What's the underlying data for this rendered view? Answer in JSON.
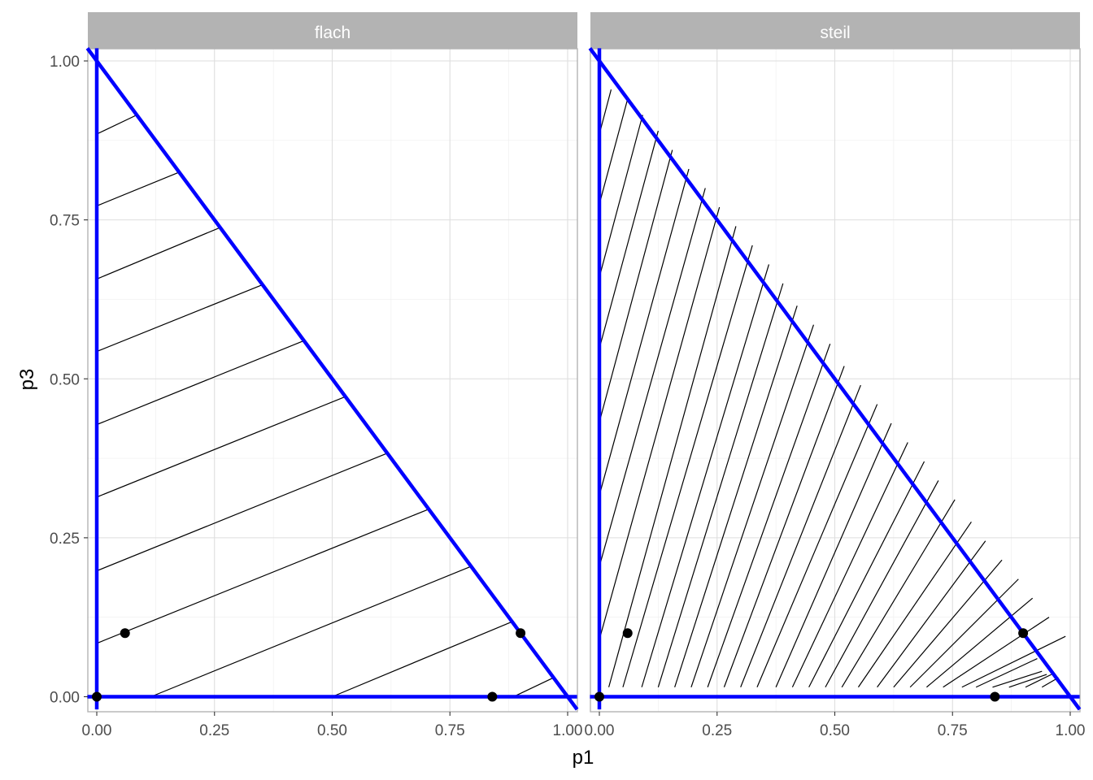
{
  "chart_data": {
    "type": "line",
    "xlabel": "p1",
    "ylabel": "p3",
    "xlim": [
      0,
      1
    ],
    "ylim": [
      0,
      1
    ],
    "x_ticks": [
      "0.00",
      "0.25",
      "0.50",
      "0.75",
      "1.00"
    ],
    "y_ticks": [
      "0.00",
      "0.25",
      "0.50",
      "0.75",
      "1.00"
    ],
    "grid": true,
    "boundary_color": "#0000ff",
    "indifference_color": "#000000",
    "point_color": "#000000",
    "panels": [
      {
        "strip_label": "flach",
        "points": [
          [
            0.0,
            0.0
          ],
          [
            0.06,
            0.1
          ],
          [
            0.84,
            0.0
          ],
          [
            0.9,
            0.1
          ]
        ],
        "boundary": [
          [
            0.0,
            0.0
          ],
          [
            1.0,
            0.0
          ],
          [
            0.0,
            1.0
          ]
        ],
        "indifference_lines": [
          [
            [
              0.0,
              0.885
            ],
            [
              0.085,
              0.915
            ]
          ],
          [
            [
              0.0,
              0.772
            ],
            [
              0.175,
              0.825
            ]
          ],
          [
            [
              0.0,
              0.657
            ],
            [
              0.262,
              0.738
            ]
          ],
          [
            [
              0.0,
              0.543
            ],
            [
              0.352,
              0.648
            ]
          ],
          [
            [
              0.0,
              0.428
            ],
            [
              0.44,
              0.56
            ]
          ],
          [
            [
              0.0,
              0.314
            ],
            [
              0.528,
              0.472
            ]
          ],
          [
            [
              0.0,
              0.198
            ],
            [
              0.617,
              0.383
            ]
          ],
          [
            [
              0.0,
              0.084
            ],
            [
              0.705,
              0.295
            ]
          ],
          [
            [
              0.115,
              0.0
            ],
            [
              0.795,
              0.205
            ]
          ],
          [
            [
              0.5,
              0.0
            ],
            [
              0.882,
              0.118
            ]
          ],
          [
            [
              0.885,
              0.0
            ],
            [
              0.97,
              0.03
            ]
          ]
        ]
      },
      {
        "strip_label": "steil",
        "points": [
          [
            0.0,
            0.0
          ],
          [
            0.06,
            0.1
          ],
          [
            0.84,
            0.0
          ],
          [
            0.9,
            0.1
          ]
        ],
        "boundary": [
          [
            0.0,
            0.0
          ],
          [
            1.0,
            0.0
          ],
          [
            0.0,
            1.0
          ]
        ],
        "indifference_lines": [
          [
            [
              0.0,
              0.885
            ],
            [
              0.025,
              0.955
            ]
          ],
          [
            [
              0.0,
              0.775
            ],
            [
              0.06,
              0.94
            ]
          ],
          [
            [
              0.0,
              0.66
            ],
            [
              0.092,
              0.915
            ]
          ],
          [
            [
              0.0,
              0.548
            ],
            [
              0.125,
              0.89
            ]
          ],
          [
            [
              0.0,
              0.432
            ],
            [
              0.155,
              0.86
            ]
          ],
          [
            [
              0.0,
              0.317
            ],
            [
              0.19,
              0.83
            ]
          ],
          [
            [
              0.0,
              0.205
            ],
            [
              0.225,
              0.8
            ]
          ],
          [
            [
              0.0,
              0.09
            ],
            [
              0.255,
              0.77
            ]
          ],
          [
            [
              0.02,
              0.015
            ],
            [
              0.29,
              0.74
            ]
          ],
          [
            [
              0.05,
              0.015
            ],
            [
              0.325,
              0.71
            ]
          ],
          [
            [
              0.09,
              0.015
            ],
            [
              0.36,
              0.68
            ]
          ],
          [
            [
              0.125,
              0.015
            ],
            [
              0.39,
              0.65
            ]
          ],
          [
            [
              0.16,
              0.015
            ],
            [
              0.42,
              0.615
            ]
          ],
          [
            [
              0.195,
              0.015
            ],
            [
              0.455,
              0.585
            ]
          ],
          [
            [
              0.23,
              0.015
            ],
            [
              0.49,
              0.555
            ]
          ],
          [
            [
              0.265,
              0.015
            ],
            [
              0.52,
              0.52
            ]
          ],
          [
            [
              0.3,
              0.015
            ],
            [
              0.555,
              0.49
            ]
          ],
          [
            [
              0.335,
              0.015
            ],
            [
              0.59,
              0.46
            ]
          ],
          [
            [
              0.375,
              0.015
            ],
            [
              0.62,
              0.43
            ]
          ],
          [
            [
              0.41,
              0.015
            ],
            [
              0.655,
              0.4
            ]
          ],
          [
            [
              0.445,
              0.015
            ],
            [
              0.69,
              0.37
            ]
          ],
          [
            [
              0.48,
              0.015
            ],
            [
              0.72,
              0.34
            ]
          ],
          [
            [
              0.515,
              0.015
            ],
            [
              0.755,
              0.31
            ]
          ],
          [
            [
              0.55,
              0.015
            ],
            [
              0.79,
              0.275
            ]
          ],
          [
            [
              0.59,
              0.015
            ],
            [
              0.82,
              0.245
            ]
          ],
          [
            [
              0.625,
              0.015
            ],
            [
              0.855,
              0.215
            ]
          ],
          [
            [
              0.66,
              0.015
            ],
            [
              0.89,
              0.185
            ]
          ],
          [
            [
              0.695,
              0.015
            ],
            [
              0.92,
              0.155
            ]
          ],
          [
            [
              0.73,
              0.015
            ],
            [
              0.955,
              0.125
            ]
          ],
          [
            [
              0.77,
              0.015
            ],
            [
              0.99,
              0.095
            ]
          ],
          [
            [
              0.8,
              0.015
            ],
            [
              0.93,
              0.06
            ]
          ],
          [
            [
              0.835,
              0.015
            ],
            [
              0.94,
              0.04
            ]
          ],
          [
            [
              0.87,
              0.015
            ],
            [
              0.95,
              0.035
            ]
          ],
          [
            [
              0.905,
              0.015
            ],
            [
              0.96,
              0.035
            ]
          ],
          [
            [
              0.94,
              0.015
            ],
            [
              0.975,
              0.03
            ]
          ]
        ]
      }
    ]
  }
}
